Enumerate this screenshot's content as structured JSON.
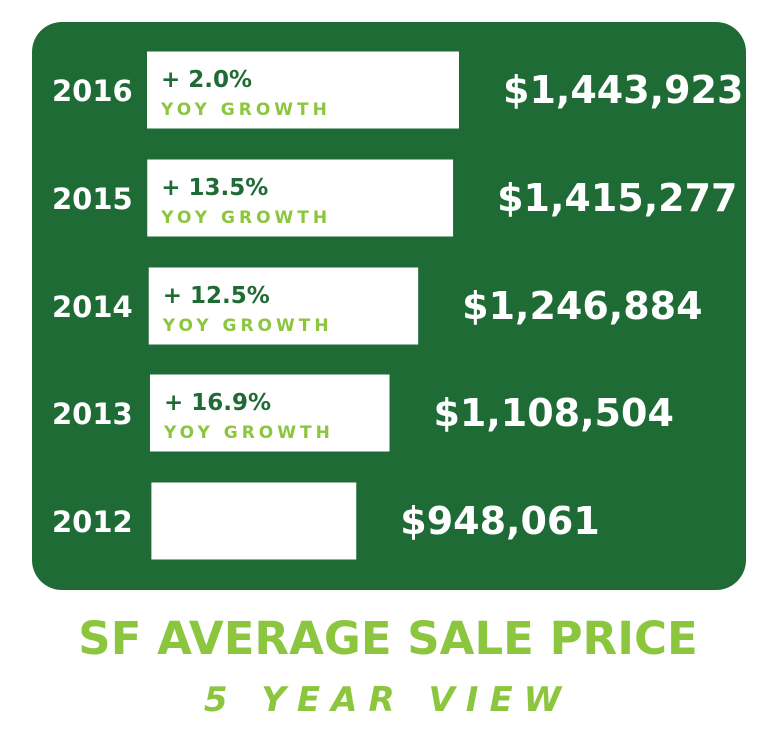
{
  "chart_data": {
    "type": "bar",
    "orientation": "horizontal",
    "title": "SF AVERAGE SALE PRICE",
    "subtitle": "5 YEAR VIEW",
    "categories": [
      "2016",
      "2015",
      "2014",
      "2013",
      "2012"
    ],
    "values": [
      1443923,
      1415277,
      1246884,
      1108504,
      948061
    ],
    "value_labels": [
      "$1,443,923",
      "$1,415,277",
      "$1,246,884",
      "$1,108,504",
      "$948,061"
    ],
    "growth": [
      "+ 2.0%",
      "+ 13.5%",
      "+ 12.5%",
      "+ 16.9%",
      ""
    ],
    "growth_caption": "YOY GROWTH",
    "colors": {
      "panel": "#1e6b35",
      "bar": "#ffffff",
      "accent": "#8cc63f"
    }
  }
}
